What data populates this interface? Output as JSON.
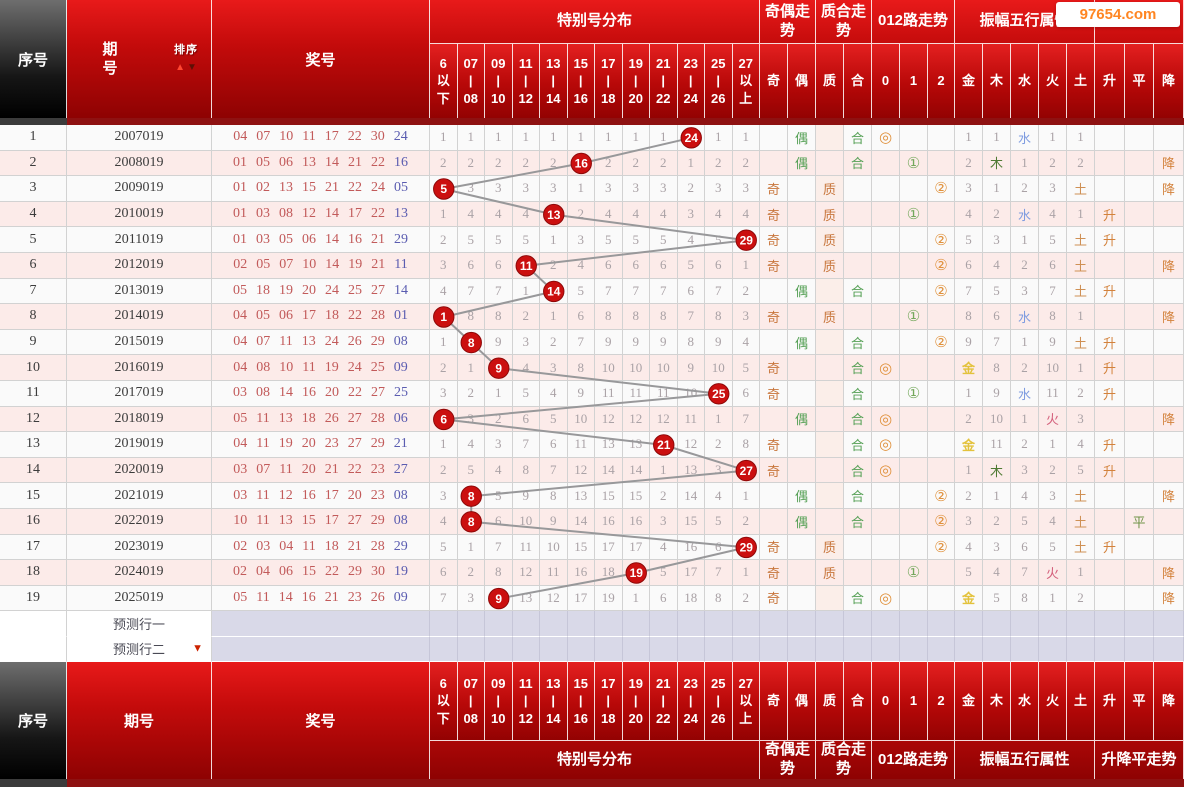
{
  "watermark": "97654.com",
  "header": {
    "seq_label": "序号",
    "period_label": "期号",
    "sort_label": "排序",
    "numbers_label": "奖号",
    "dist_group": "特别号分布",
    "dist_cols": [
      [
        "6",
        "以",
        "下"
      ],
      [
        "07",
        "|",
        "08"
      ],
      [
        "09",
        "|",
        "10"
      ],
      [
        "11",
        "|",
        "12"
      ],
      [
        "13",
        "|",
        "14"
      ],
      [
        "15",
        "|",
        "16"
      ],
      [
        "17",
        "|",
        "18"
      ],
      [
        "19",
        "|",
        "20"
      ],
      [
        "21",
        "|",
        "22"
      ],
      [
        "23",
        "|",
        "24"
      ],
      [
        "25",
        "|",
        "26"
      ],
      [
        "27",
        "以",
        "上"
      ]
    ],
    "odd_even_group": "奇偶走势",
    "odd_even_cols": [
      "奇",
      "偶"
    ],
    "prime_group": "质合走势",
    "prime_cols": [
      "质",
      "合"
    ],
    "route_group": "012路走势",
    "route_cols": [
      "0",
      "1",
      "2"
    ],
    "five_group": "振幅五行属性",
    "five_cols": [
      "金",
      "木",
      "水",
      "火",
      "土"
    ],
    "trend_group": "升降平走势",
    "trend_cols": [
      "升",
      "平",
      "降"
    ]
  },
  "colors": {
    "header_red": "#c40b0b",
    "header_black": "#161616",
    "circle_red": "#cb0f0f",
    "trend_line_gray": "#98989a",
    "number_red": "#c25a5a",
    "special_blue": "#5a5cb0",
    "row_pink": "#fcebe9",
    "prediction_lavender": "#d9d9e8",
    "odd_orange": "#c8763c",
    "even_green": "#55a055",
    "element_gold": "#e3c23c",
    "element_wood": "#4f7a33",
    "element_water": "#7f9ce0",
    "element_fire": "#d4607c",
    "element_earth": "#cf9054",
    "watermark_orange": "#ff8622"
  },
  "rows": [
    {
      "seq": "1",
      "period": "2007019",
      "nums": [
        "04",
        "07",
        "10",
        "11",
        "17",
        "22",
        "30"
      ],
      "special": "24",
      "dist": [
        "1",
        "1",
        "1",
        "1",
        "1",
        "1",
        "1",
        "1",
        "1",
        "24",
        "1",
        "1"
      ],
      "hit": 9,
      "oe": "偶",
      "pc": "合",
      "route": 0,
      "sym": "◎",
      "five": [
        "1",
        "1",
        "水",
        "1",
        "1"
      ],
      "trend": ""
    },
    {
      "seq": "2",
      "period": "2008019",
      "nums": [
        "01",
        "05",
        "06",
        "13",
        "14",
        "21",
        "22"
      ],
      "special": "16",
      "dist": [
        "2",
        "2",
        "2",
        "2",
        "2",
        "16",
        "2",
        "2",
        "2",
        "1",
        "2",
        "2"
      ],
      "hit": 5,
      "oe": "偶",
      "pc": "合",
      "route": 1,
      "sym": "①",
      "five": [
        "2",
        "木",
        "1",
        "2",
        "2"
      ],
      "trend": "降"
    },
    {
      "seq": "3",
      "period": "2009019",
      "nums": [
        "01",
        "02",
        "13",
        "15",
        "21",
        "22",
        "24"
      ],
      "special": "05",
      "dist": [
        "5",
        "3",
        "3",
        "3",
        "3",
        "1",
        "3",
        "3",
        "3",
        "2",
        "3",
        "3"
      ],
      "hit": 0,
      "oe": "奇",
      "pc": "质",
      "route": 2,
      "sym": "②",
      "five": [
        "3",
        "1",
        "2",
        "3",
        "土"
      ],
      "trend": "降"
    },
    {
      "seq": "4",
      "period": "2010019",
      "nums": [
        "01",
        "03",
        "08",
        "12",
        "14",
        "17",
        "22"
      ],
      "special": "13",
      "dist": [
        "1",
        "4",
        "4",
        "4",
        "13",
        "2",
        "4",
        "4",
        "4",
        "3",
        "4",
        "4"
      ],
      "hit": 4,
      "oe": "奇",
      "pc": "质",
      "route": 1,
      "sym": "①",
      "five": [
        "4",
        "2",
        "水",
        "4",
        "1"
      ],
      "trend": "升"
    },
    {
      "seq": "5",
      "period": "2011019",
      "nums": [
        "01",
        "03",
        "05",
        "06",
        "14",
        "16",
        "21"
      ],
      "special": "29",
      "dist": [
        "2",
        "5",
        "5",
        "5",
        "1",
        "3",
        "5",
        "5",
        "5",
        "4",
        "5",
        "29"
      ],
      "hit": 11,
      "oe": "奇",
      "pc": "质",
      "route": 2,
      "sym": "②",
      "five": [
        "5",
        "3",
        "1",
        "5",
        "土"
      ],
      "trend": "升"
    },
    {
      "seq": "6",
      "period": "2012019",
      "nums": [
        "02",
        "05",
        "07",
        "10",
        "14",
        "19",
        "21"
      ],
      "special": "11",
      "dist": [
        "3",
        "6",
        "6",
        "11",
        "2",
        "4",
        "6",
        "6",
        "6",
        "5",
        "6",
        "1"
      ],
      "hit": 3,
      "oe": "奇",
      "pc": "质",
      "route": 2,
      "sym": "②",
      "five": [
        "6",
        "4",
        "2",
        "6",
        "土"
      ],
      "trend": "降"
    },
    {
      "seq": "7",
      "period": "2013019",
      "nums": [
        "05",
        "18",
        "19",
        "20",
        "24",
        "25",
        "27"
      ],
      "special": "14",
      "dist": [
        "4",
        "7",
        "7",
        "1",
        "14",
        "5",
        "7",
        "7",
        "7",
        "6",
        "7",
        "2"
      ],
      "hit": 4,
      "oe": "偶",
      "pc": "合",
      "route": 2,
      "sym": "②",
      "five": [
        "7",
        "5",
        "3",
        "7",
        "土"
      ],
      "trend": "升"
    },
    {
      "seq": "8",
      "period": "2014019",
      "nums": [
        "04",
        "05",
        "06",
        "17",
        "18",
        "22",
        "28"
      ],
      "special": "01",
      "dist": [
        "1",
        "8",
        "8",
        "2",
        "1",
        "6",
        "8",
        "8",
        "8",
        "7",
        "8",
        "3"
      ],
      "hit": 0,
      "oe": "奇",
      "pc": "质",
      "route": 1,
      "sym": "①",
      "five": [
        "8",
        "6",
        "水",
        "8",
        "1"
      ],
      "trend": "降"
    },
    {
      "seq": "9",
      "period": "2015019",
      "nums": [
        "04",
        "07",
        "11",
        "13",
        "24",
        "26",
        "29"
      ],
      "special": "08",
      "dist": [
        "1",
        "8",
        "9",
        "3",
        "2",
        "7",
        "9",
        "9",
        "9",
        "8",
        "9",
        "4"
      ],
      "hit": 1,
      "oe": "偶",
      "pc": "合",
      "route": 2,
      "sym": "②",
      "five": [
        "9",
        "7",
        "1",
        "9",
        "土"
      ],
      "trend": "升"
    },
    {
      "seq": "10",
      "period": "2016019",
      "nums": [
        "04",
        "08",
        "10",
        "11",
        "19",
        "24",
        "25"
      ],
      "special": "09",
      "dist": [
        "2",
        "1",
        "9",
        "4",
        "3",
        "8",
        "10",
        "10",
        "10",
        "9",
        "10",
        "5"
      ],
      "hit": 2,
      "oe": "奇",
      "pc": "合",
      "route": 0,
      "sym": "◎",
      "five": [
        "金",
        "8",
        "2",
        "10",
        "1"
      ],
      "trend": "升"
    },
    {
      "seq": "11",
      "period": "2017019",
      "nums": [
        "03",
        "08",
        "14",
        "16",
        "20",
        "22",
        "27"
      ],
      "special": "25",
      "dist": [
        "3",
        "2",
        "1",
        "5",
        "4",
        "9",
        "11",
        "11",
        "11",
        "10",
        "25",
        "6"
      ],
      "hit": 10,
      "oe": "奇",
      "pc": "合",
      "route": 1,
      "sym": "①",
      "five": [
        "1",
        "9",
        "水",
        "11",
        "2"
      ],
      "trend": "升"
    },
    {
      "seq": "12",
      "period": "2018019",
      "nums": [
        "05",
        "11",
        "13",
        "18",
        "26",
        "27",
        "28"
      ],
      "special": "06",
      "dist": [
        "6",
        "3",
        "2",
        "6",
        "5",
        "10",
        "12",
        "12",
        "12",
        "11",
        "1",
        "7"
      ],
      "hit": 0,
      "oe": "偶",
      "pc": "合",
      "route": 0,
      "sym": "◎",
      "five": [
        "2",
        "10",
        "1",
        "火",
        "3"
      ],
      "trend": "降"
    },
    {
      "seq": "13",
      "period": "2019019",
      "nums": [
        "04",
        "11",
        "19",
        "20",
        "23",
        "27",
        "29"
      ],
      "special": "21",
      "dist": [
        "1",
        "4",
        "3",
        "7",
        "6",
        "11",
        "13",
        "13",
        "21",
        "12",
        "2",
        "8"
      ],
      "hit": 8,
      "oe": "奇",
      "pc": "合",
      "route": 0,
      "sym": "◎",
      "five": [
        "金",
        "11",
        "2",
        "1",
        "4"
      ],
      "trend": "升"
    },
    {
      "seq": "14",
      "period": "2020019",
      "nums": [
        "03",
        "07",
        "11",
        "20",
        "21",
        "22",
        "23"
      ],
      "special": "27",
      "dist": [
        "2",
        "5",
        "4",
        "8",
        "7",
        "12",
        "14",
        "14",
        "1",
        "13",
        "3",
        "27"
      ],
      "hit": 11,
      "oe": "奇",
      "pc": "合",
      "route": 0,
      "sym": "◎",
      "five": [
        "1",
        "木",
        "3",
        "2",
        "5"
      ],
      "trend": "升"
    },
    {
      "seq": "15",
      "period": "2021019",
      "nums": [
        "03",
        "11",
        "12",
        "16",
        "17",
        "20",
        "23"
      ],
      "special": "08",
      "dist": [
        "3",
        "8",
        "5",
        "9",
        "8",
        "13",
        "15",
        "15",
        "2",
        "14",
        "4",
        "1"
      ],
      "hit": 1,
      "oe": "偶",
      "pc": "合",
      "route": 2,
      "sym": "②",
      "five": [
        "2",
        "1",
        "4",
        "3",
        "土"
      ],
      "trend": "降"
    },
    {
      "seq": "16",
      "period": "2022019",
      "nums": [
        "10",
        "11",
        "13",
        "15",
        "17",
        "27",
        "29"
      ],
      "special": "08",
      "dist": [
        "4",
        "8",
        "6",
        "10",
        "9",
        "14",
        "16",
        "16",
        "3",
        "15",
        "5",
        "2"
      ],
      "hit": 1,
      "oe": "偶",
      "pc": "合",
      "route": 2,
      "sym": "②",
      "five": [
        "3",
        "2",
        "5",
        "4",
        "土"
      ],
      "trend": "平"
    },
    {
      "seq": "17",
      "period": "2023019",
      "nums": [
        "02",
        "03",
        "04",
        "11",
        "18",
        "21",
        "28"
      ],
      "special": "29",
      "dist": [
        "5",
        "1",
        "7",
        "11",
        "10",
        "15",
        "17",
        "17",
        "4",
        "16",
        "6",
        "29"
      ],
      "hit": 11,
      "oe": "奇",
      "pc": "质",
      "route": 2,
      "sym": "②",
      "five": [
        "4",
        "3",
        "6",
        "5",
        "土"
      ],
      "trend": "升"
    },
    {
      "seq": "18",
      "period": "2024019",
      "nums": [
        "02",
        "04",
        "06",
        "15",
        "22",
        "29",
        "30"
      ],
      "special": "19",
      "dist": [
        "6",
        "2",
        "8",
        "12",
        "11",
        "16",
        "18",
        "19",
        "5",
        "17",
        "7",
        "1"
      ],
      "hit": 7,
      "oe": "奇",
      "pc": "质",
      "route": 1,
      "sym": "①",
      "five": [
        "5",
        "4",
        "7",
        "火",
        "1"
      ],
      "trend": "降"
    },
    {
      "seq": "19",
      "period": "2025019",
      "nums": [
        "05",
        "11",
        "14",
        "16",
        "21",
        "23",
        "26"
      ],
      "special": "09",
      "dist": [
        "7",
        "3",
        "9",
        "13",
        "12",
        "17",
        "19",
        "1",
        "6",
        "18",
        "8",
        "2"
      ],
      "hit": 2,
      "oe": "奇",
      "pc": "合",
      "route": 0,
      "sym": "◎",
      "five": [
        "金",
        "5",
        "8",
        "1",
        "2"
      ],
      "trend": "降"
    }
  ],
  "predictions": [
    {
      "label": "预测行一",
      "arrow": false
    },
    {
      "label": "预测行二",
      "arrow": true
    }
  ],
  "chart_data": {
    "type": "table",
    "title": "特别号分布",
    "x": [
      "2007019",
      "2008019",
      "2009019",
      "2010019",
      "2011019",
      "2012019",
      "2013019",
      "2014019",
      "2015019",
      "2016019",
      "2017019",
      "2018019",
      "2019019",
      "2020019",
      "2021019",
      "2022019",
      "2023019",
      "2024019",
      "2025019"
    ],
    "series": [
      {
        "name": "特别号",
        "values": [
          24,
          16,
          5,
          13,
          29,
          11,
          14,
          1,
          8,
          9,
          25,
          6,
          21,
          27,
          8,
          8,
          29,
          19,
          9
        ]
      }
    ],
    "bins": [
      "6以下",
      "07-08",
      "09-10",
      "11-12",
      "13-14",
      "15-16",
      "17-18",
      "19-20",
      "21-22",
      "23-24",
      "25-26",
      "27以上"
    ],
    "legend_position": "none",
    "grid": true
  }
}
